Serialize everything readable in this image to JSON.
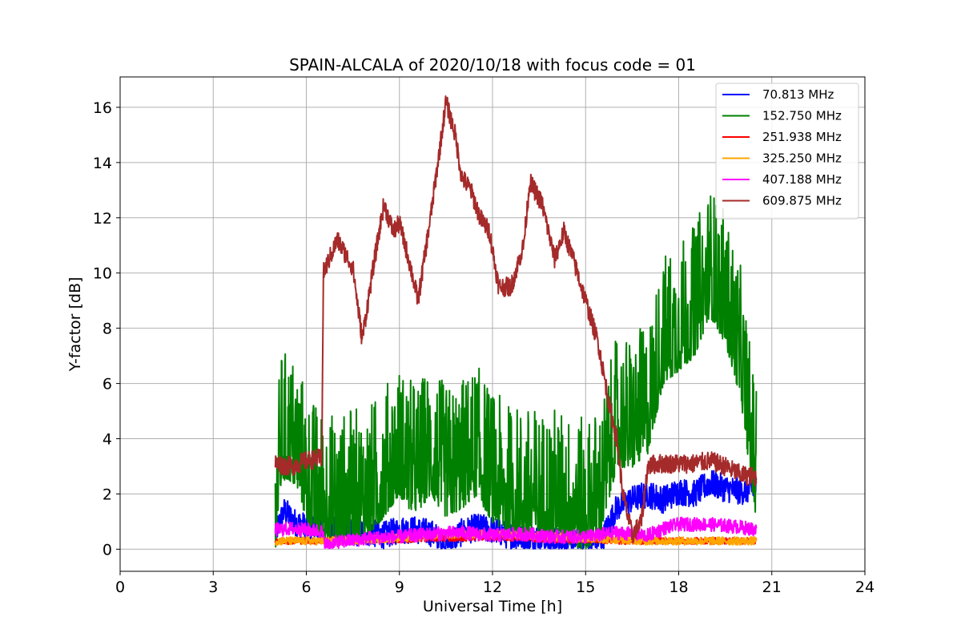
{
  "chart_data": {
    "type": "line",
    "title": "SPAIN-ALCALA of 2020/10/18 with focus code = 01",
    "xlabel": "Universal Time [h]",
    "ylabel": "Y-factor [dB]",
    "xlim": [
      0,
      24
    ],
    "ylim": [
      -0.8,
      17.1
    ],
    "xticks": [
      0,
      3,
      6,
      9,
      12,
      15,
      18,
      21,
      24
    ],
    "yticks": [
      0,
      2,
      4,
      6,
      8,
      10,
      12,
      14,
      16
    ],
    "grid": true,
    "legend_position": "top-right",
    "series": [
      {
        "name": " 70.813 MHz",
        "color": "#0000ff",
        "noise": 0.5,
        "x": [
          5.0,
          5.3,
          5.6,
          6.0,
          6.5,
          7.0,
          7.5,
          8.0,
          8.5,
          9.0,
          9.5,
          10.0,
          10.5,
          11.0,
          11.5,
          12.0,
          12.5,
          13.0,
          13.5,
          14.0,
          14.5,
          15.0,
          15.5,
          16.0,
          16.5,
          17.0,
          17.5,
          18.0,
          18.5,
          19.0,
          19.5,
          20.0,
          20.5
        ],
        "y": [
          0.6,
          1.4,
          1.0,
          0.8,
          0.8,
          0.7,
          0.6,
          0.6,
          0.5,
          0.7,
          0.7,
          0.6,
          0.2,
          0.6,
          0.8,
          0.7,
          0.5,
          0.4,
          0.4,
          0.3,
          0.3,
          0.2,
          0.3,
          1.5,
          1.8,
          2.0,
          1.8,
          2.1,
          2.0,
          2.4,
          2.2,
          2.1,
          2.2
        ]
      },
      {
        "name": "152.750 MHz",
        "color": "#008000",
        "noise": 3.0,
        "x": [
          5.0,
          5.2,
          5.5,
          5.8,
          6.0,
          6.5,
          7.0,
          7.5,
          8.0,
          8.5,
          9.0,
          9.3,
          9.6,
          10.0,
          10.5,
          11.0,
          11.5,
          12.0,
          12.5,
          13.0,
          13.5,
          14.0,
          14.5,
          15.0,
          15.5,
          16.0,
          16.5,
          17.0,
          17.5,
          18.0,
          18.5,
          19.0,
          19.5,
          20.0,
          20.5
        ],
        "y": [
          1.0,
          3.5,
          3.5,
          3.0,
          2.0,
          1.4,
          1.2,
          1.4,
          1.5,
          2.2,
          3.0,
          2.5,
          2.4,
          3.0,
          2.2,
          2.5,
          3.0,
          2.0,
          1.6,
          1.5,
          1.4,
          1.5,
          1.2,
          1.0,
          1.6,
          4.0,
          4.0,
          4.5,
          7.0,
          7.5,
          8.0,
          9.5,
          8.5,
          6.5,
          2.0
        ]
      },
      {
        "name": "251.938 MHz",
        "color": "#ff0000",
        "noise": 0.12,
        "x": [
          5.0,
          6.0,
          7.0,
          8.0,
          9.0,
          10.0,
          11.0,
          12.0,
          13.0,
          14.0,
          15.0,
          16.0,
          17.0,
          18.0,
          19.0,
          20.0,
          20.5
        ],
        "y": [
          0.3,
          0.3,
          0.3,
          0.35,
          0.35,
          0.4,
          0.4,
          0.45,
          0.4,
          0.35,
          0.35,
          0.3,
          0.3,
          0.3,
          0.3,
          0.3,
          0.3
        ]
      },
      {
        "name": "325.250 MHz",
        "color": "#ffa500",
        "noise": 0.15,
        "x": [
          5.0,
          6.0,
          7.0,
          8.0,
          9.0,
          10.0,
          11.0,
          12.0,
          13.0,
          14.0,
          15.0,
          16.0,
          17.0,
          18.0,
          19.0,
          20.0,
          20.5
        ],
        "y": [
          0.3,
          0.3,
          0.3,
          0.35,
          0.4,
          0.5,
          0.55,
          0.55,
          0.5,
          0.45,
          0.4,
          0.35,
          0.3,
          0.3,
          0.3,
          0.3,
          0.3
        ]
      },
      {
        "name": "407.188 MHz",
        "color": "#ff00ff",
        "noise": 0.25,
        "x": [
          5.0,
          5.5,
          6.0,
          6.5,
          6.6,
          7.0,
          8.0,
          9.0,
          10.0,
          11.0,
          12.0,
          13.0,
          14.0,
          15.0,
          16.0,
          16.5,
          17.0,
          17.5,
          18.0,
          19.0,
          20.0,
          20.5
        ],
        "y": [
          0.7,
          0.75,
          0.7,
          0.65,
          0.15,
          0.25,
          0.4,
          0.45,
          0.55,
          0.6,
          0.5,
          0.55,
          0.45,
          0.45,
          0.6,
          0.55,
          0.5,
          0.75,
          0.9,
          0.9,
          0.8,
          0.7
        ]
      },
      {
        "name": "609.875 MHz",
        "color": "#a52a2a",
        "noise": 0.35,
        "x": [
          5.0,
          5.5,
          6.0,
          6.5,
          6.55,
          7.0,
          7.5,
          7.8,
          8.2,
          8.5,
          8.8,
          9.0,
          9.3,
          9.6,
          10.0,
          10.3,
          10.5,
          10.8,
          11.0,
          11.3,
          11.6,
          11.9,
          12.2,
          12.6,
          13.0,
          13.2,
          13.6,
          14.0,
          14.3,
          14.6,
          15.0,
          15.4,
          15.8,
          16.0,
          16.2,
          16.5,
          16.8,
          17.0,
          17.3,
          18.0,
          18.5,
          19.0,
          19.5,
          20.0,
          20.5
        ],
        "y": [
          3.1,
          3.0,
          3.2,
          3.3,
          10.0,
          11.2,
          10.2,
          7.6,
          10.5,
          12.5,
          11.5,
          11.8,
          10.5,
          9.0,
          12.0,
          14.5,
          16.2,
          15.0,
          13.5,
          13.0,
          12.0,
          11.5,
          9.5,
          9.5,
          11.0,
          13.3,
          12.5,
          10.5,
          11.5,
          10.5,
          9.0,
          7.5,
          5.0,
          4.0,
          2.0,
          0.5,
          1.0,
          3.0,
          3.1,
          3.1,
          3.1,
          3.2,
          3.0,
          2.7,
          2.6
        ]
      }
    ]
  }
}
